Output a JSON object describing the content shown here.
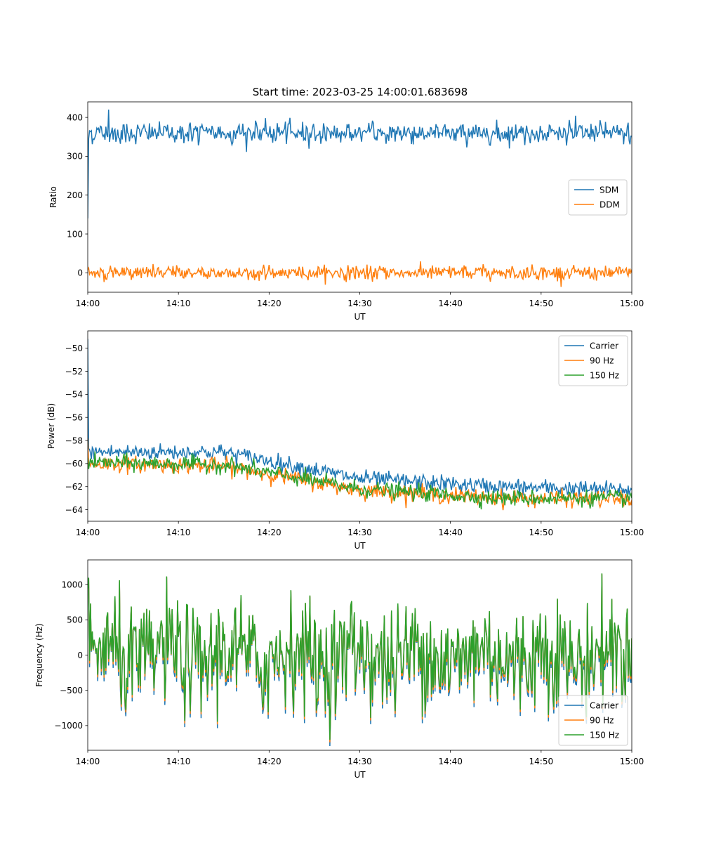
{
  "figure": {
    "title": "Start time: 2023-03-25 14:00:01.683698"
  },
  "chart_data": [
    {
      "type": "line",
      "title": "Start time: 2023-03-25 14:00:01.683698",
      "xlabel": "UT",
      "ylabel": "Ratio",
      "xlim": [
        0,
        60
      ],
      "ylim": [
        -50,
        440
      ],
      "x_ticks": [
        0,
        10,
        20,
        30,
        40,
        50,
        60
      ],
      "x_tick_labels": [
        "14:00",
        "14:10",
        "14:20",
        "14:30",
        "14:40",
        "14:50",
        "15:00"
      ],
      "y_ticks": [
        0,
        100,
        200,
        300,
        400
      ],
      "y_tick_labels": [
        "0",
        "100",
        "200",
        "300",
        "400"
      ],
      "grid": false,
      "legend": {
        "placement": "center-right",
        "entries": [
          "SDM",
          "DDM"
        ]
      },
      "series": [
        {
          "name": "SDM",
          "color": "#1f77b4",
          "values_note_base": 360,
          "start": 140,
          "spike": [
            2.3,
            420
          ],
          "noise": 15
        },
        {
          "name": "DDM",
          "color": "#ff7f0e",
          "base": 0,
          "noise": 10
        }
      ]
    },
    {
      "type": "line",
      "xlabel": "UT",
      "ylabel": "Power (dB)",
      "xlim": [
        0,
        60
      ],
      "ylim": [
        -65,
        -48.5
      ],
      "x_ticks": [
        0,
        10,
        20,
        30,
        40,
        50,
        60
      ],
      "x_tick_labels": [
        "14:00",
        "14:10",
        "14:20",
        "14:30",
        "14:40",
        "14:50",
        "15:00"
      ],
      "y_ticks": [
        -64,
        -62,
        -60,
        -58,
        -56,
        -54,
        -52,
        -50
      ],
      "y_tick_labels": [
        "−64",
        "−62",
        "−60",
        "−58",
        "−56",
        "−54",
        "−52",
        "−50"
      ],
      "grid": false,
      "legend": {
        "placement": "top-right",
        "entries": [
          "Carrier",
          "90 Hz",
          "150 Hz"
        ]
      },
      "series": [
        {
          "name": "Carrier",
          "color": "#1f77b4",
          "start": -49.2,
          "trend": [
            [
              0,
              -59
            ],
            [
              15,
              -59
            ],
            [
              30,
              -61.3
            ],
            [
              45,
              -62
            ],
            [
              60,
              -62.3
            ]
          ]
        },
        {
          "name": "90 Hz",
          "color": "#ff7f0e",
          "start": -57.8,
          "trend": [
            [
              0,
              -60
            ],
            [
              15,
              -60.2
            ],
            [
              30,
              -62.3
            ],
            [
              45,
              -63
            ],
            [
              60,
              -63.1
            ]
          ]
        },
        {
          "name": "150 Hz",
          "color": "#2ca02c",
          "start": -59.5,
          "trend": [
            [
              0,
              -59.9
            ],
            [
              15,
              -60.1
            ],
            [
              30,
              -62.2
            ],
            [
              45,
              -63
            ],
            [
              60,
              -63
            ]
          ]
        }
      ]
    },
    {
      "type": "line",
      "xlabel": "UT",
      "ylabel": "Frequency (Hz)",
      "xlim": [
        0,
        60
      ],
      "ylim": [
        -1350,
        1350
      ],
      "x_ticks": [
        0,
        10,
        20,
        30,
        40,
        50,
        60
      ],
      "x_tick_labels": [
        "14:00",
        "14:10",
        "14:20",
        "14:30",
        "14:40",
        "14:50",
        "15:00"
      ],
      "y_ticks": [
        -1000,
        -500,
        0,
        500,
        1000
      ],
      "y_tick_labels": [
        "−1000",
        "−500",
        "0",
        "500",
        "1000"
      ],
      "grid": false,
      "legend": {
        "placement": "bottom-right",
        "entries": [
          "Carrier",
          "90 Hz",
          "150 Hz"
        ]
      },
      "series": [
        {
          "name": "Carrier",
          "color": "#1f77b4",
          "offset": -60
        },
        {
          "name": "90 Hz",
          "color": "#ff7f0e",
          "offset": -25
        },
        {
          "name": "150 Hz",
          "color": "#2ca02c",
          "offset": 0
        }
      ]
    }
  ],
  "colors": {
    "c0": "#1f77b4",
    "c1": "#ff7f0e",
    "c2": "#2ca02c",
    "axis": "#000000",
    "legend_border": "#cccccc"
  }
}
